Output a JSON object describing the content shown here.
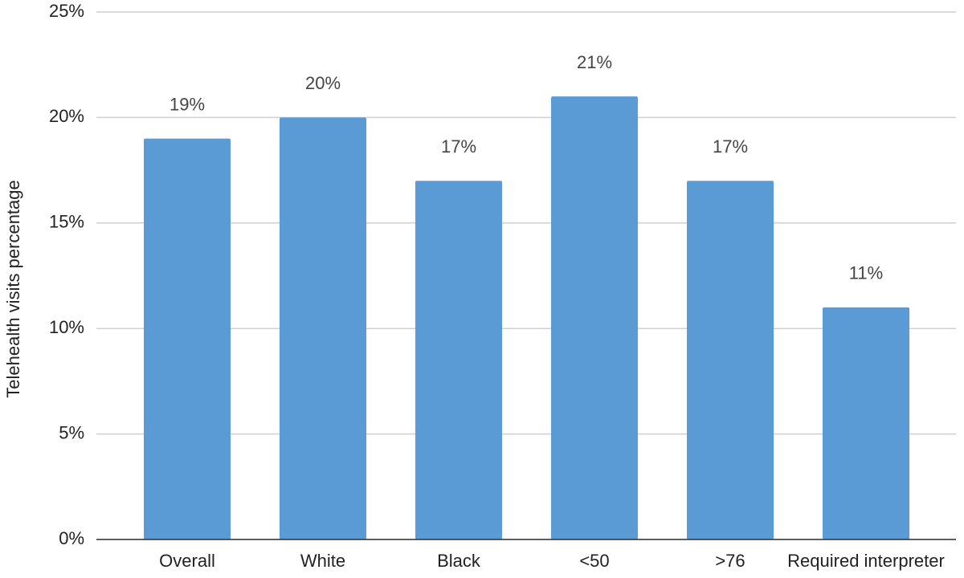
{
  "chart_data": {
    "type": "bar",
    "y_label": "Telehealth visits percentage",
    "categories": [
      "Overall",
      "White",
      "Black",
      "<50",
      ">76",
      "Required interpreter"
    ],
    "values": [
      19,
      20,
      17,
      21,
      17,
      11
    ],
    "value_labels": [
      "19%",
      "20%",
      "17%",
      "21%",
      "17%",
      "11%"
    ],
    "color": "#5b9bd5",
    "ylim": [
      0,
      25
    ],
    "yticks": [
      {
        "value": 0,
        "label": "0%"
      },
      {
        "value": 5,
        "label": "5%"
      },
      {
        "value": 10,
        "label": "10%"
      },
      {
        "value": 15,
        "label": "15%"
      },
      {
        "value": 20,
        "label": "20%"
      },
      {
        "value": 25,
        "label": "25%"
      }
    ],
    "grid": true
  }
}
